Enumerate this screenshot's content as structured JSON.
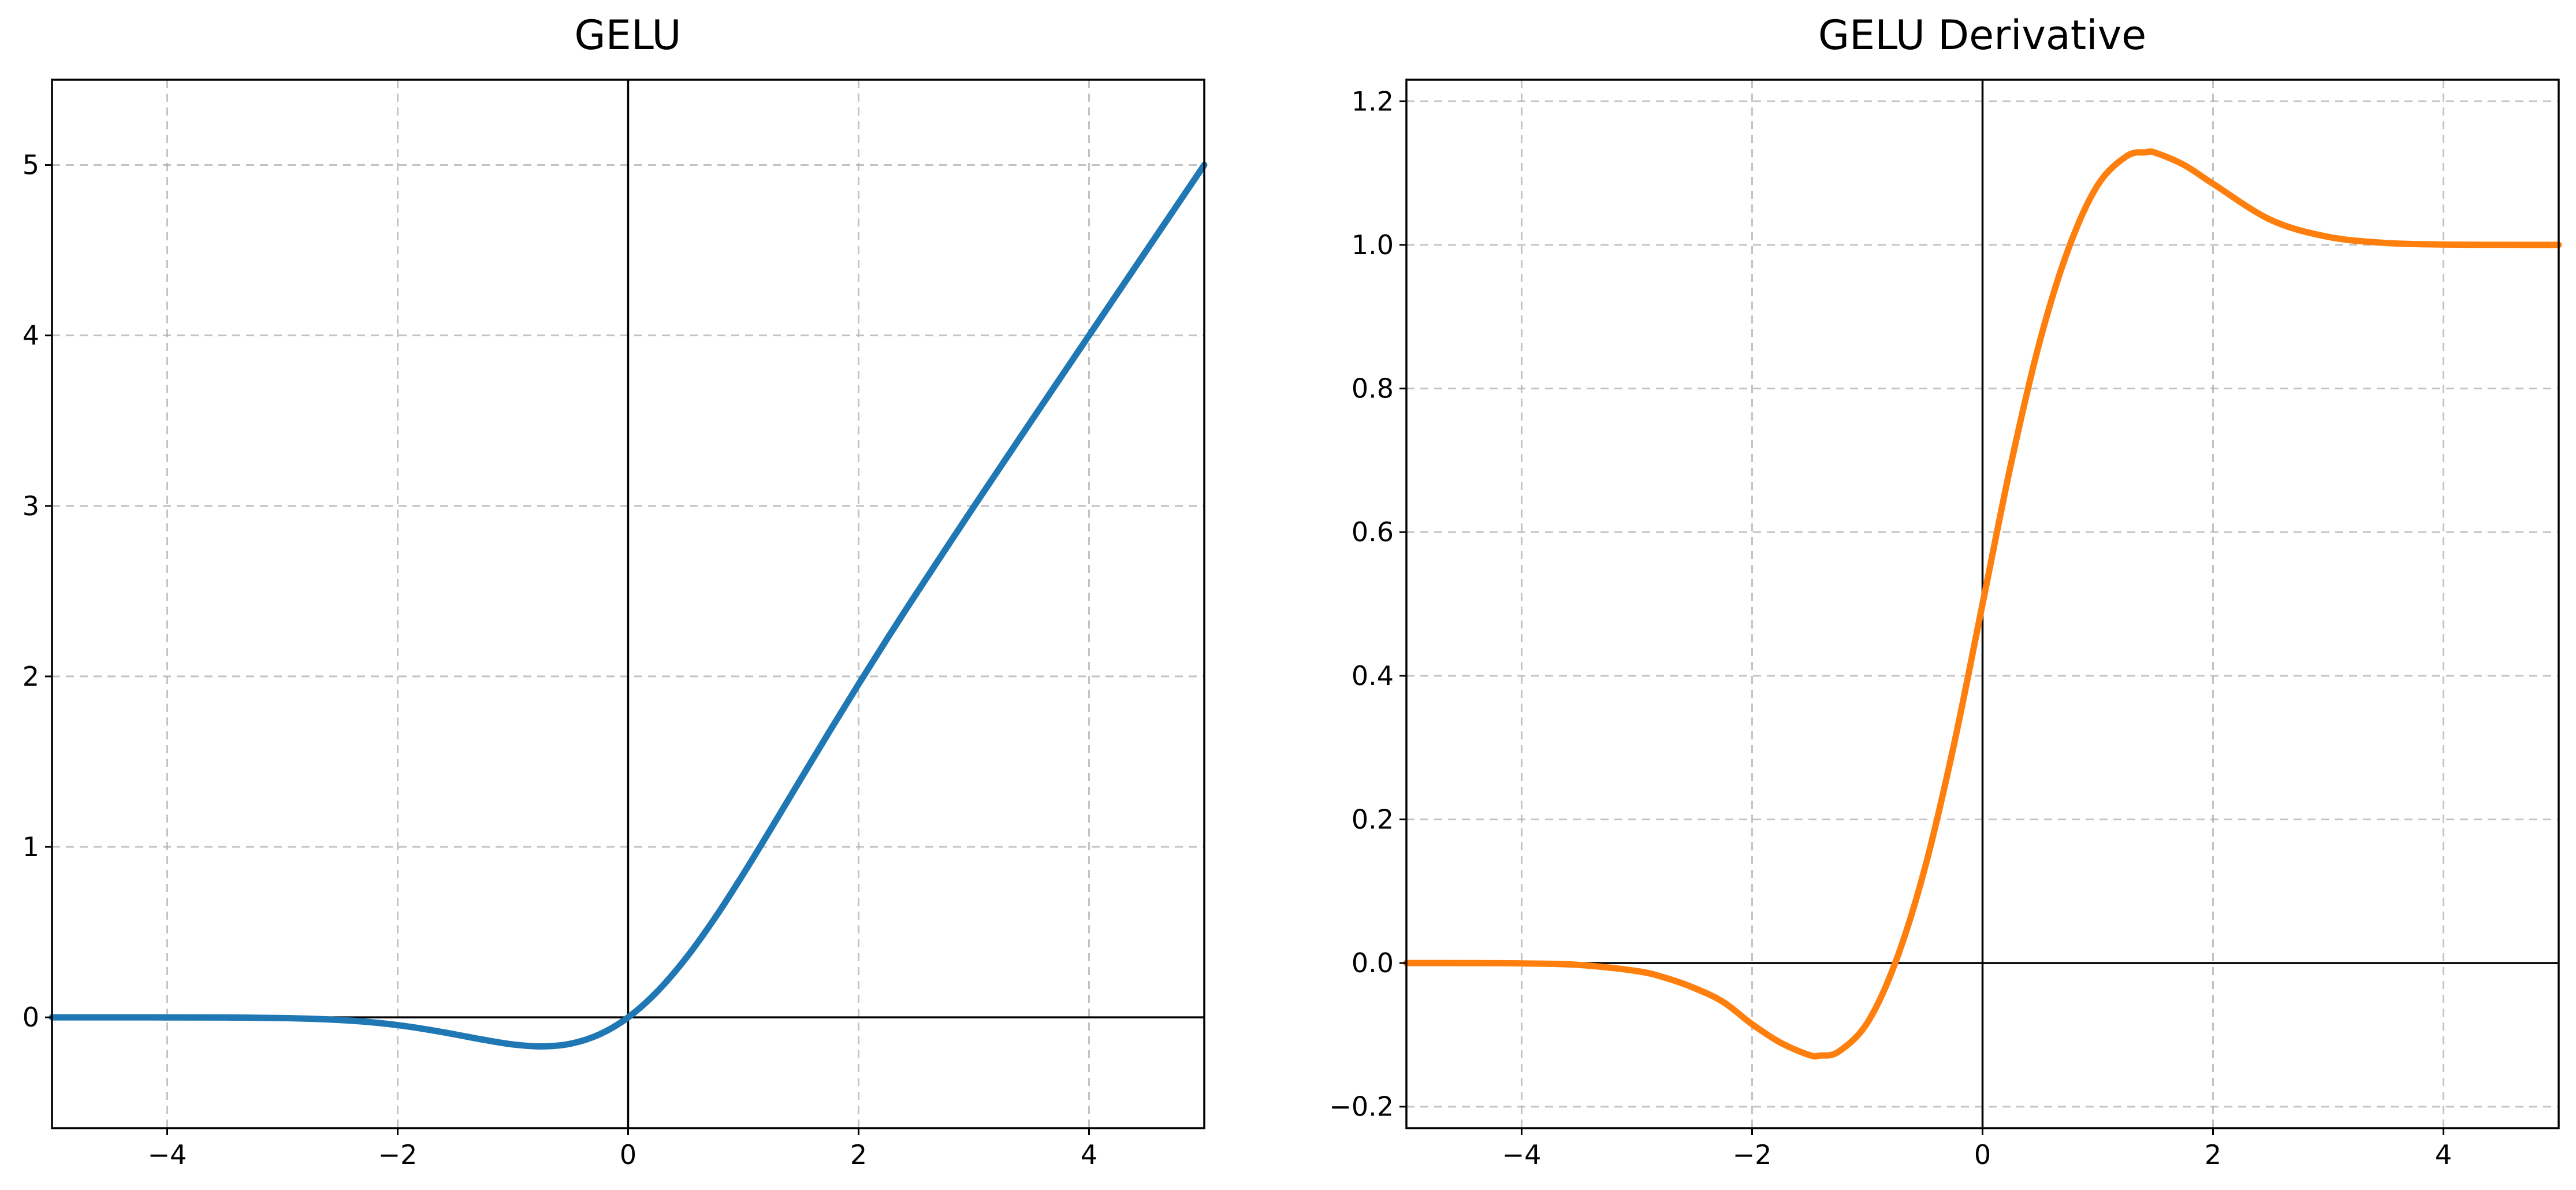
{
  "colors": {
    "gelu": "#1f77b4",
    "gelu_derivative": "#ff7f0e",
    "grid": "#b0b0b0",
    "axes": "#000000"
  },
  "chart_data": [
    {
      "type": "line",
      "title": "GELU",
      "xlabel": "",
      "ylabel": "",
      "xlim": [
        -5,
        5
      ],
      "ylim": [
        -0.65,
        5.5
      ],
      "xticks": [
        -4,
        -2,
        0,
        2,
        4
      ],
      "xtick_labels": [
        "−4",
        "−2",
        "0",
        "2",
        "4"
      ],
      "yticks": [
        0,
        1,
        2,
        3,
        4,
        5
      ],
      "ytick_labels": [
        "0",
        "1",
        "2",
        "3",
        "4",
        "5"
      ],
      "grid": true,
      "legend": "none",
      "series": [
        {
          "x": [
            -5,
            -4.5,
            -4,
            -3.5,
            -3,
            -2.75,
            -2.5,
            -2.25,
            -2,
            -1.75,
            -1.5,
            -1.25,
            -1,
            -0.75,
            -0.5,
            -0.25,
            0,
            0.25,
            0.5,
            0.75,
            1,
            1.25,
            1.5,
            1.75,
            2,
            2.25,
            2.5,
            3,
            3.5,
            4,
            4.5,
            5
          ],
          "y": [
            0,
            0,
            -0.0001,
            -0.0008,
            -0.004,
            -0.0082,
            -0.0155,
            -0.0274,
            -0.0454,
            -0.0702,
            -0.1002,
            -0.1318,
            -0.1587,
            -0.1702,
            -0.1543,
            -0.1003,
            0,
            0.1497,
            0.3457,
            0.5798,
            0.8413,
            1.1182,
            1.3998,
            1.6798,
            1.9546,
            2.2226,
            2.4845,
            2.996,
            3.4992,
            3.9999,
            4.5,
            5
          ]
        }
      ]
    },
    {
      "type": "line",
      "title": "GELU Derivative",
      "xlabel": "",
      "ylabel": "",
      "xlim": [
        -5,
        5
      ],
      "ylim": [
        -0.23,
        1.23
      ],
      "xticks": [
        -4,
        -2,
        0,
        2,
        4
      ],
      "xtick_labels": [
        "−4",
        "−2",
        "0",
        "2",
        "4"
      ],
      "yticks": [
        -0.2,
        0,
        0.2,
        0.4,
        0.6,
        0.8,
        1.0,
        1.2
      ],
      "ytick_labels": [
        "−0.2",
        "0.0",
        "0.2",
        "0.4",
        "0.6",
        "0.8",
        "1.0",
        "1.2"
      ],
      "grid": true,
      "legend": "none",
      "series": [
        {
          "x": [
            -5,
            -4.5,
            -4,
            -3.5,
            -3,
            -2.75,
            -2.5,
            -2.25,
            -2,
            -1.75,
            -1.5,
            -1.414,
            -1.25,
            -1,
            -0.75,
            -0.5,
            -0.25,
            0,
            0.25,
            0.5,
            0.75,
            1,
            1.25,
            1.414,
            1.5,
            1.75,
            2,
            2.5,
            3,
            3.5,
            4,
            4.5,
            5
          ],
          "y": [
            0,
            -0.0001,
            -0.0005,
            -0.0027,
            -0.0112,
            -0.0207,
            -0.0349,
            -0.0543,
            -0.0852,
            -0.1112,
            -0.1283,
            -0.1289,
            -0.1235,
            -0.0833,
            0.0035,
            0.1325,
            0.3027,
            0.5,
            0.6973,
            0.8675,
            0.9965,
            1.0833,
            1.1235,
            1.1289,
            1.1283,
            1.1112,
            1.0852,
            1.0349,
            1.0112,
            1.0027,
            1.0005,
            1.0001,
            1.0
          ]
        }
      ]
    }
  ]
}
